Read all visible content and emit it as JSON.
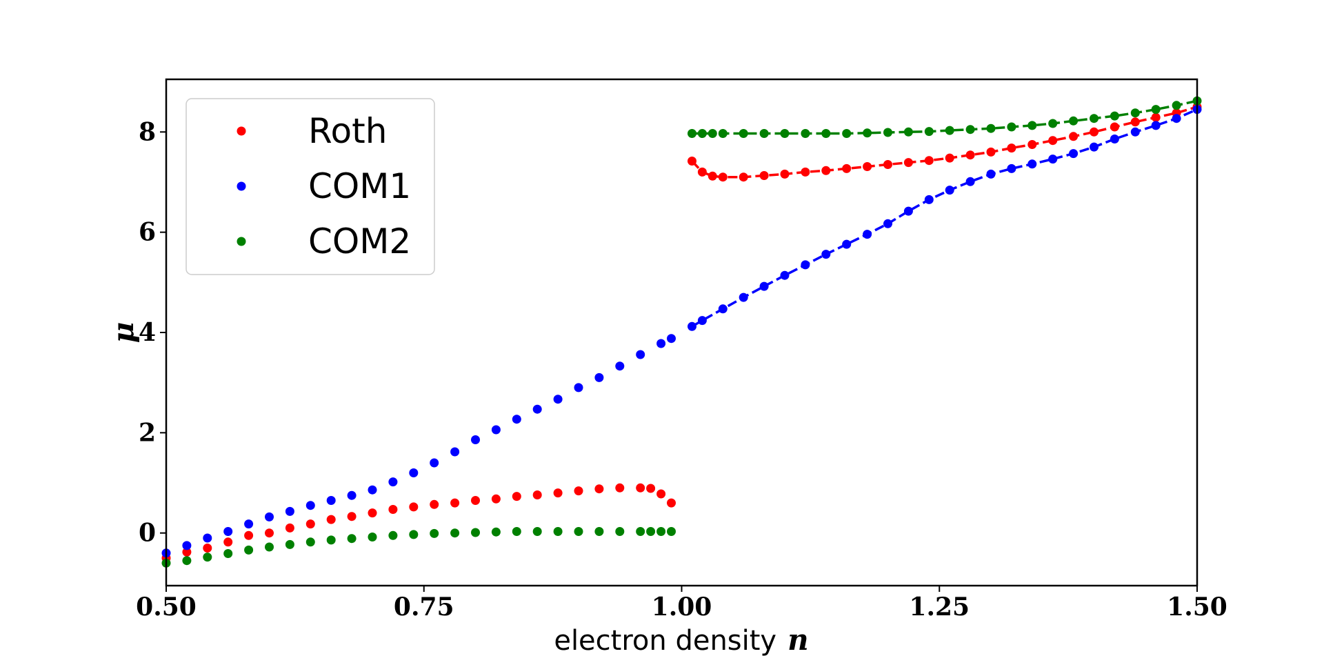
{
  "chart_data": {
    "type": "scatter",
    "title": "",
    "xlabel": "electron density",
    "xlabel_var": "n",
    "ylabel": "μ",
    "xlim": [
      0.5,
      1.5
    ],
    "ylim": [
      -1.05,
      9.05
    ],
    "xticks": [
      0.5,
      0.75,
      1.0,
      1.25,
      1.5
    ],
    "xtick_labels": [
      "0.50",
      "0.75",
      "1.00",
      "1.25",
      "1.50"
    ],
    "yticks": [
      0,
      2,
      4,
      6,
      8
    ],
    "ytick_labels": [
      "0",
      "2",
      "4",
      "6",
      "8"
    ],
    "grid": false,
    "legend": "top-left",
    "series": [
      {
        "name": "Roth",
        "color": "#ff0000",
        "low_points": [
          [
            0.5,
            -0.5
          ],
          [
            0.52,
            -0.38
          ],
          [
            0.54,
            -0.3
          ],
          [
            0.56,
            -0.18
          ],
          [
            0.58,
            -0.05
          ],
          [
            0.6,
            0.0
          ],
          [
            0.62,
            0.1
          ],
          [
            0.64,
            0.18
          ],
          [
            0.66,
            0.27
          ],
          [
            0.68,
            0.33
          ],
          [
            0.7,
            0.4
          ],
          [
            0.72,
            0.47
          ],
          [
            0.74,
            0.52
          ],
          [
            0.76,
            0.57
          ],
          [
            0.78,
            0.6
          ],
          [
            0.8,
            0.65
          ],
          [
            0.82,
            0.68
          ],
          [
            0.84,
            0.73
          ],
          [
            0.86,
            0.76
          ],
          [
            0.88,
            0.8
          ],
          [
            0.9,
            0.84
          ],
          [
            0.92,
            0.88
          ],
          [
            0.94,
            0.9
          ],
          [
            0.96,
            0.9
          ],
          [
            0.97,
            0.89
          ],
          [
            0.98,
            0.78
          ],
          [
            0.99,
            0.6
          ]
        ],
        "high_points": [
          [
            1.01,
            7.42
          ],
          [
            1.02,
            7.2
          ],
          [
            1.03,
            7.12
          ],
          [
            1.04,
            7.1
          ],
          [
            1.06,
            7.1
          ],
          [
            1.08,
            7.13
          ],
          [
            1.1,
            7.16
          ],
          [
            1.12,
            7.2
          ],
          [
            1.14,
            7.23
          ],
          [
            1.16,
            7.27
          ],
          [
            1.18,
            7.31
          ],
          [
            1.2,
            7.35
          ],
          [
            1.22,
            7.39
          ],
          [
            1.24,
            7.43
          ],
          [
            1.26,
            7.48
          ],
          [
            1.28,
            7.54
          ],
          [
            1.3,
            7.6
          ],
          [
            1.32,
            7.68
          ],
          [
            1.34,
            7.75
          ],
          [
            1.36,
            7.83
          ],
          [
            1.38,
            7.91
          ],
          [
            1.4,
            8.0
          ],
          [
            1.42,
            8.1
          ],
          [
            1.44,
            8.2
          ],
          [
            1.46,
            8.29
          ],
          [
            1.48,
            8.38
          ],
          [
            1.5,
            8.5
          ]
        ]
      },
      {
        "name": "COM1",
        "color": "#0000ff",
        "low_points": [
          [
            0.5,
            -0.4
          ],
          [
            0.52,
            -0.25
          ],
          [
            0.54,
            -0.1
          ],
          [
            0.56,
            0.03
          ],
          [
            0.58,
            0.18
          ],
          [
            0.6,
            0.32
          ],
          [
            0.62,
            0.43
          ],
          [
            0.64,
            0.55
          ],
          [
            0.66,
            0.65
          ],
          [
            0.68,
            0.75
          ],
          [
            0.7,
            0.86
          ],
          [
            0.72,
            1.02
          ],
          [
            0.74,
            1.2
          ],
          [
            0.76,
            1.4
          ],
          [
            0.78,
            1.62
          ],
          [
            0.8,
            1.86
          ],
          [
            0.82,
            2.06
          ],
          [
            0.84,
            2.27
          ],
          [
            0.86,
            2.47
          ],
          [
            0.88,
            2.67
          ],
          [
            0.9,
            2.9
          ],
          [
            0.92,
            3.1
          ],
          [
            0.94,
            3.33
          ],
          [
            0.96,
            3.56
          ],
          [
            0.98,
            3.78
          ],
          [
            0.99,
            3.88
          ]
        ],
        "high_points": [
          [
            1.01,
            4.12
          ],
          [
            1.02,
            4.24
          ],
          [
            1.04,
            4.47
          ],
          [
            1.06,
            4.7
          ],
          [
            1.08,
            4.92
          ],
          [
            1.1,
            5.14
          ],
          [
            1.12,
            5.35
          ],
          [
            1.14,
            5.56
          ],
          [
            1.16,
            5.76
          ],
          [
            1.18,
            5.96
          ],
          [
            1.2,
            6.17
          ],
          [
            1.22,
            6.42
          ],
          [
            1.24,
            6.65
          ],
          [
            1.26,
            6.84
          ],
          [
            1.28,
            7.01
          ],
          [
            1.3,
            7.16
          ],
          [
            1.32,
            7.27
          ],
          [
            1.34,
            7.36
          ],
          [
            1.36,
            7.46
          ],
          [
            1.38,
            7.57
          ],
          [
            1.4,
            7.7
          ],
          [
            1.42,
            7.86
          ],
          [
            1.44,
            8.0
          ],
          [
            1.46,
            8.13
          ],
          [
            1.48,
            8.27
          ],
          [
            1.5,
            8.45
          ]
        ]
      },
      {
        "name": "COM2",
        "color": "#008000",
        "low_points": [
          [
            0.5,
            -0.6
          ],
          [
            0.52,
            -0.55
          ],
          [
            0.54,
            -0.48
          ],
          [
            0.56,
            -0.41
          ],
          [
            0.58,
            -0.34
          ],
          [
            0.6,
            -0.28
          ],
          [
            0.62,
            -0.23
          ],
          [
            0.64,
            -0.18
          ],
          [
            0.66,
            -0.14
          ],
          [
            0.68,
            -0.11
          ],
          [
            0.7,
            -0.08
          ],
          [
            0.72,
            -0.05
          ],
          [
            0.74,
            -0.03
          ],
          [
            0.76,
            -0.01
          ],
          [
            0.78,
            0.0
          ],
          [
            0.8,
            0.01
          ],
          [
            0.82,
            0.02
          ],
          [
            0.84,
            0.03
          ],
          [
            0.86,
            0.03
          ],
          [
            0.88,
            0.03
          ],
          [
            0.9,
            0.03
          ],
          [
            0.92,
            0.03
          ],
          [
            0.94,
            0.03
          ],
          [
            0.96,
            0.03
          ],
          [
            0.97,
            0.03
          ],
          [
            0.98,
            0.03
          ],
          [
            0.99,
            0.03
          ]
        ],
        "high_points": [
          [
            1.01,
            7.97
          ],
          [
            1.02,
            7.97
          ],
          [
            1.03,
            7.97
          ],
          [
            1.04,
            7.97
          ],
          [
            1.06,
            7.97
          ],
          [
            1.08,
            7.97
          ],
          [
            1.1,
            7.97
          ],
          [
            1.12,
            7.97
          ],
          [
            1.14,
            7.97
          ],
          [
            1.16,
            7.97
          ],
          [
            1.18,
            7.98
          ],
          [
            1.2,
            7.99
          ],
          [
            1.22,
            8.0
          ],
          [
            1.24,
            8.01
          ],
          [
            1.26,
            8.03
          ],
          [
            1.28,
            8.05
          ],
          [
            1.3,
            8.07
          ],
          [
            1.32,
            8.1
          ],
          [
            1.34,
            8.13
          ],
          [
            1.36,
            8.17
          ],
          [
            1.38,
            8.22
          ],
          [
            1.4,
            8.27
          ],
          [
            1.42,
            8.32
          ],
          [
            1.44,
            8.38
          ],
          [
            1.46,
            8.45
          ],
          [
            1.48,
            8.53
          ],
          [
            1.5,
            8.62
          ]
        ]
      }
    ]
  }
}
